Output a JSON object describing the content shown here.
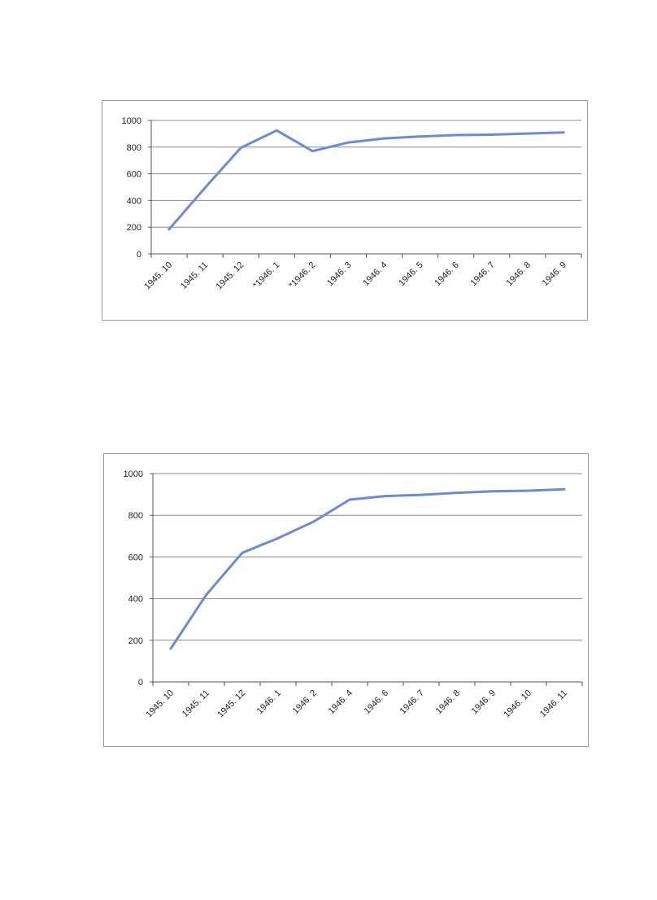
{
  "chart_data": [
    {
      "type": "line",
      "title": "",
      "xlabel": "",
      "ylabel": "",
      "ylim": [
        0,
        1000
      ],
      "yticks": [
        0,
        200,
        400,
        600,
        800,
        1000
      ],
      "grid": true,
      "legend": "none",
      "categories": [
        "1945. 10",
        "1945. 11",
        "1945. 12",
        "*1946. 1",
        "*1946. 2",
        "1946. 3",
        "1946. 4",
        "1946. 5",
        "1946. 6",
        "1946. 7",
        "1946. 8",
        "1946. 9"
      ],
      "series": [
        {
          "values": [
            185,
            495,
            795,
            925,
            770,
            835,
            865,
            880,
            890,
            893,
            902,
            910
          ]
        }
      ],
      "color": "#6a8bd8"
    },
    {
      "type": "line",
      "title": "",
      "xlabel": "",
      "ylabel": "",
      "ylim": [
        0,
        1000
      ],
      "yticks": [
        0,
        200,
        400,
        600,
        800,
        1000
      ],
      "grid": true,
      "legend": "none",
      "categories": [
        "1945. 10",
        "1945. 11",
        "1945. 12",
        "1946. 1",
        "1946. 2",
        "1946. 4",
        "1946. 6",
        "1946. 7",
        "1946. 8",
        "1946. 9",
        "1946. 10",
        "1946. 11"
      ],
      "series": [
        {
          "values": [
            160,
            420,
            620,
            690,
            770,
            875,
            892,
            898,
            908,
            915,
            918,
            925
          ]
        }
      ],
      "color": "#6a8bd8"
    }
  ]
}
